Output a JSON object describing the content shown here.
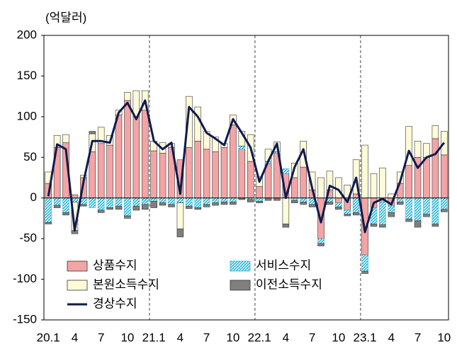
{
  "chart_data": {
    "type": "stacked-bar-line",
    "y_label": "(억달러)",
    "categories": [
      "20.1",
      null,
      null,
      "4",
      null,
      null,
      "7",
      null,
      null,
      "10",
      null,
      null,
      "21.1",
      null,
      null,
      "4",
      null,
      null,
      "7",
      null,
      null,
      "10",
      null,
      null,
      "22.1",
      null,
      null,
      "4",
      null,
      null,
      "7",
      null,
      null,
      "10",
      null,
      null,
      "23.1",
      null,
      null,
      "4",
      null,
      null,
      "7",
      null,
      null,
      "10"
    ],
    "ylim": [
      -150,
      200
    ],
    "yticks": [
      -150,
      -100,
      -50,
      0,
      50,
      100,
      150,
      200
    ],
    "series": [
      {
        "name": "상품수지",
        "color": "#f4a4a4",
        "kind": "bar",
        "values": [
          18,
          62,
          68,
          4,
          25,
          57,
          67,
          65,
          102,
          120,
          100,
          108,
          58,
          55,
          62,
          47,
          62,
          70,
          60,
          57,
          62,
          90,
          60,
          45,
          14,
          42,
          55,
          30,
          25,
          38,
          10,
          -50,
          10,
          -6,
          -15,
          5,
          -70,
          -12,
          -5,
          -10,
          18,
          40,
          50,
          50,
          73,
          53
        ]
      },
      {
        "name": "서비스수지",
        "color": "#29b6d8",
        "kind": "bar",
        "pattern": "hatch",
        "values": [
          -30,
          -9,
          -18,
          -5,
          -8,
          -12,
          -15,
          -12,
          -10,
          -22,
          -10,
          -8,
          -4,
          -6,
          -8,
          -6,
          -10,
          -12,
          -8,
          -6,
          -5,
          -5,
          4,
          -2,
          -4,
          3,
          2,
          6,
          -3,
          -5,
          -8,
          -6,
          -5,
          -5,
          -5,
          -18,
          -20,
          -20,
          -28,
          -8,
          -5,
          -26,
          -28,
          -20,
          -32,
          -14
        ]
      },
      {
        "name": "본원소득수지",
        "color": "#fffbd8",
        "kind": "bar",
        "values": [
          14,
          15,
          10,
          -35,
          3,
          22,
          20,
          12,
          6,
          10,
          32,
          24,
          12,
          13,
          5,
          -32,
          63,
          42,
          22,
          18,
          5,
          12,
          18,
          33,
          12,
          15,
          12,
          -32,
          18,
          32,
          22,
          25,
          23,
          25,
          16,
          42,
          65,
          30,
          37,
          5,
          14,
          48,
          20,
          17,
          16,
          29
        ]
      },
      {
        "name": "이전소득수지",
        "color": "#7f7f7f",
        "kind": "bar",
        "values": [
          -2,
          -3,
          -3,
          -4,
          -2,
          3,
          -3,
          -2,
          -4,
          -3,
          -5,
          -6,
          -8,
          -3,
          -3,
          -10,
          -3,
          -2,
          -3,
          -3,
          -3,
          -3,
          -2,
          -3,
          -2,
          -3,
          -3,
          -4,
          -3,
          -3,
          -3,
          -3,
          -3,
          -3,
          -2,
          -3,
          -3,
          -3,
          -3,
          -5,
          -3,
          -3,
          -8,
          -3,
          -3,
          -3
        ]
      },
      {
        "name": "경상수지",
        "color": "#0f1a4f",
        "kind": "line",
        "values": [
          2,
          66,
          60,
          -40,
          20,
          70,
          70,
          68,
          105,
          117,
          97,
          120,
          70,
          60,
          68,
          5,
          112,
          100,
          80,
          73,
          65,
          97,
          80,
          62,
          20,
          45,
          67,
          0,
          38,
          60,
          12,
          -30,
          15,
          10,
          -5,
          25,
          -42,
          -6,
          -1,
          -8,
          20,
          58,
          37,
          50,
          54,
          68
        ]
      }
    ]
  }
}
